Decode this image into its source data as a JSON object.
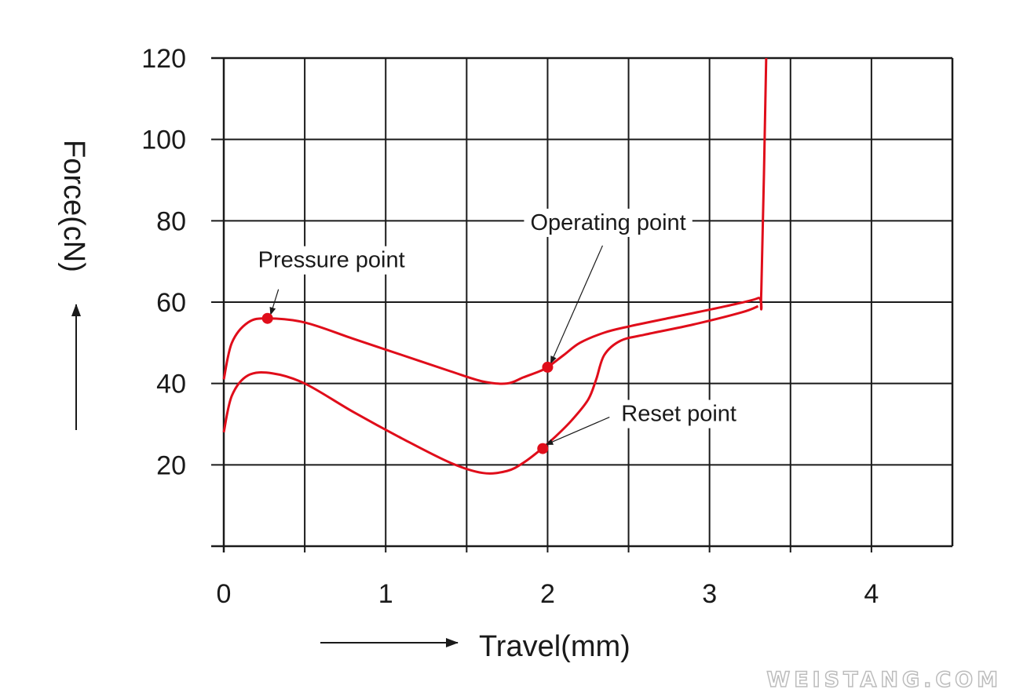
{
  "chart_data": {
    "type": "line",
    "title": "",
    "xlabel": "Travel(mm)",
    "ylabel": "Force(cN)",
    "xlim": [
      0,
      4.5
    ],
    "ylim": [
      0,
      120
    ],
    "xticks": [
      0,
      1,
      2,
      3,
      4
    ],
    "xtick_labels": [
      "0",
      "1",
      "2",
      "3",
      "4"
    ],
    "yticks": [
      20,
      40,
      60,
      80,
      100,
      120
    ],
    "ytick_labels": [
      "20",
      "40",
      "60",
      "80",
      "100",
      "120"
    ],
    "grid": true,
    "grid_x_step": 0.5,
    "grid_y_step": 20,
    "colors": {
      "curve": "#e00d1a",
      "text": "#1a1a1a"
    },
    "series": [
      {
        "x": [
          0,
          0.05,
          0.15,
          0.27,
          0.5,
          0.8,
          1.1,
          1.4,
          1.6,
          1.75,
          1.85,
          1.95,
          2.0,
          2.1,
          2.2,
          2.35,
          2.5,
          2.8,
          3.1,
          3.3,
          3.32,
          3.35
        ],
        "y": [
          41,
          50,
          55,
          56,
          55,
          51,
          47,
          43,
          40.5,
          40,
          41.5,
          43,
          44,
          47,
          50,
          52.5,
          54,
          56.5,
          59,
          61,
          63,
          120
        ]
      },
      {
        "x": [
          0,
          0.05,
          0.15,
          0.3,
          0.5,
          0.8,
          1.1,
          1.4,
          1.6,
          1.75,
          1.85,
          1.95,
          2.05,
          2.15,
          2.25,
          2.3,
          2.35,
          2.45,
          2.6,
          2.9,
          3.2,
          3.3
        ],
        "y": [
          28,
          37,
          42,
          42.5,
          40,
          33,
          26.5,
          20.5,
          18,
          18.5,
          20.5,
          23.5,
          27,
          31,
          36,
          41,
          47,
          50.5,
          52,
          54.5,
          57.5,
          59
        ]
      }
    ],
    "points": [
      {
        "label": "Pressure point",
        "x": 0.27,
        "y": 56
      },
      {
        "label": "Operating point",
        "x": 2.0,
        "y": 44
      },
      {
        "label": "Reset point",
        "x": 1.97,
        "y": 24
      }
    ]
  },
  "watermark": "WEISTANG.COM"
}
